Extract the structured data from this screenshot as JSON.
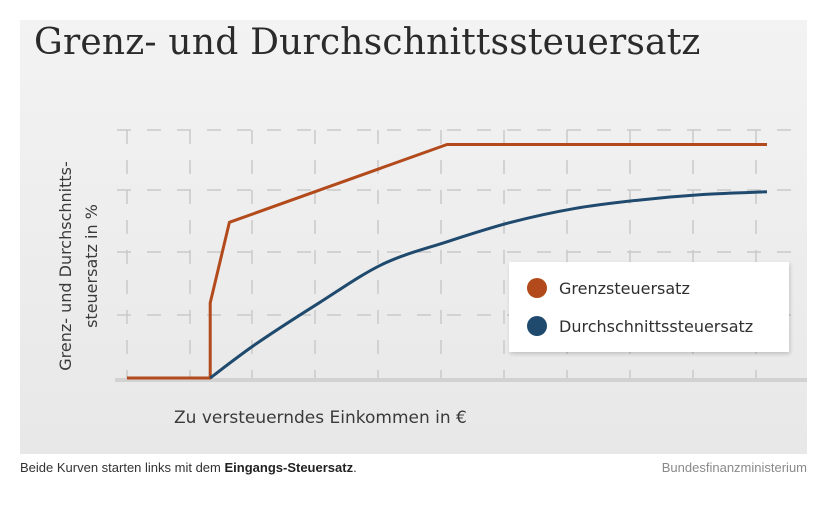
{
  "chart_data": {
    "type": "line",
    "title": "Grenz- und Durchschnittssteuersatz",
    "ylabel_lines": [
      "Grenz- und Durchschnitts-",
      "steuersatz in %"
    ],
    "xlabel": "Zu versteuerndes Einkommen in €",
    "grid": true,
    "legend_position": "right",
    "axis_ticks_labeled": false,
    "series": [
      {
        "name": "Grenzsteuersatz",
        "color": "#b24a1c",
        "points": [
          [
            0,
            0
          ],
          [
            0.13,
            0
          ],
          [
            0.13,
            0.27
          ],
          [
            0.16,
            0.56
          ],
          [
            0.5,
            0.84
          ],
          [
            1.0,
            0.84
          ]
        ]
      },
      {
        "name": "Durchschnittssteuersatz",
        "color": "#1f4a6e",
        "points": [
          [
            0.13,
            0
          ],
          [
            0.2,
            0.12
          ],
          [
            0.3,
            0.27
          ],
          [
            0.4,
            0.41
          ],
          [
            0.5,
            0.49
          ],
          [
            0.6,
            0.56
          ],
          [
            0.7,
            0.61
          ],
          [
            0.8,
            0.64
          ],
          [
            0.9,
            0.66
          ],
          [
            1.0,
            0.67
          ]
        ]
      }
    ]
  },
  "caption": {
    "prefix": "Beide Kurven starten links mit dem ",
    "bold": "Eingangs-Steuersatz",
    "suffix": "."
  },
  "credit": "Bundesfinanzministerium"
}
